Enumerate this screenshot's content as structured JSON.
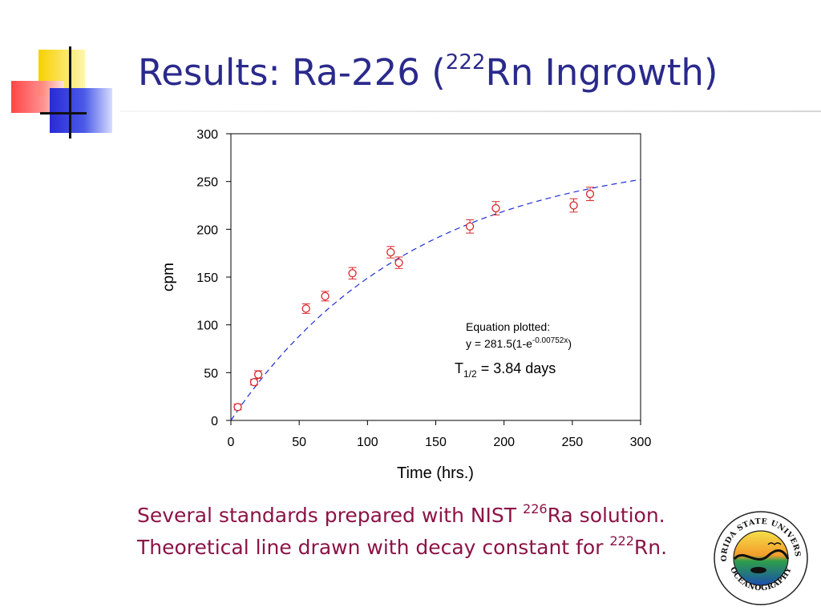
{
  "slide": {
    "title": {
      "prefix": "Results: Ra-226 (",
      "superscript": "222",
      "suffix": "Rn Ingrowth)"
    },
    "caption": {
      "part1": "Several standards prepared with NIST ",
      "sup1": "226",
      "part2": "Ra solution.  Theoretical line drawn with decay constant for ",
      "sup2": "222",
      "part3": "Rn."
    },
    "logo": {
      "top_text": "FLORIDA STATE UNIVERSITY",
      "bottom_text": "OCEANOGRAPHY"
    },
    "colors": {
      "title": "#2a2a8c",
      "caption": "#8c1346",
      "points": "#d9262b",
      "fit_line": "#1f2fd6"
    }
  },
  "chart_data": {
    "type": "scatter",
    "xlabel": "Time (hrs.)",
    "ylabel": "cpm",
    "xlim": [
      0,
      300
    ],
    "ylim": [
      0,
      300
    ],
    "x_ticks": [
      0,
      50,
      100,
      150,
      200,
      250,
      300
    ],
    "y_ticks": [
      0,
      50,
      100,
      150,
      200,
      250,
      300
    ],
    "grid": false,
    "series": [
      {
        "type": "scatter",
        "marker": "open-circle",
        "points": [
          {
            "x": 5,
            "y": 14,
            "err": 3
          },
          {
            "x": 17,
            "y": 40,
            "err": 3
          },
          {
            "x": 20,
            "y": 48,
            "err": 4
          },
          {
            "x": 55,
            "y": 117,
            "err": 5
          },
          {
            "x": 69,
            "y": 130,
            "err": 5
          },
          {
            "x": 89,
            "y": 154,
            "err": 6
          },
          {
            "x": 117,
            "y": 176,
            "err": 6
          },
          {
            "x": 123,
            "y": 165,
            "err": 6
          },
          {
            "x": 175,
            "y": 203,
            "err": 7
          },
          {
            "x": 194,
            "y": 222,
            "err": 7
          },
          {
            "x": 251,
            "y": 225,
            "err": 7
          },
          {
            "x": 263,
            "y": 237,
            "err": 7
          }
        ]
      },
      {
        "type": "line",
        "style": "dashed",
        "fit": {
          "A": 281.5,
          "k": 0.00752
        }
      }
    ],
    "annotations": {
      "eq_label": "Equation plotted:",
      "eq_main": "y = 281.5(1-e",
      "eq_exp": "-0.00752x",
      "eq_close": ")",
      "half_life_T": "T",
      "half_life_sub": "1/2",
      "half_life_rest": " = 3.84 days"
    }
  }
}
